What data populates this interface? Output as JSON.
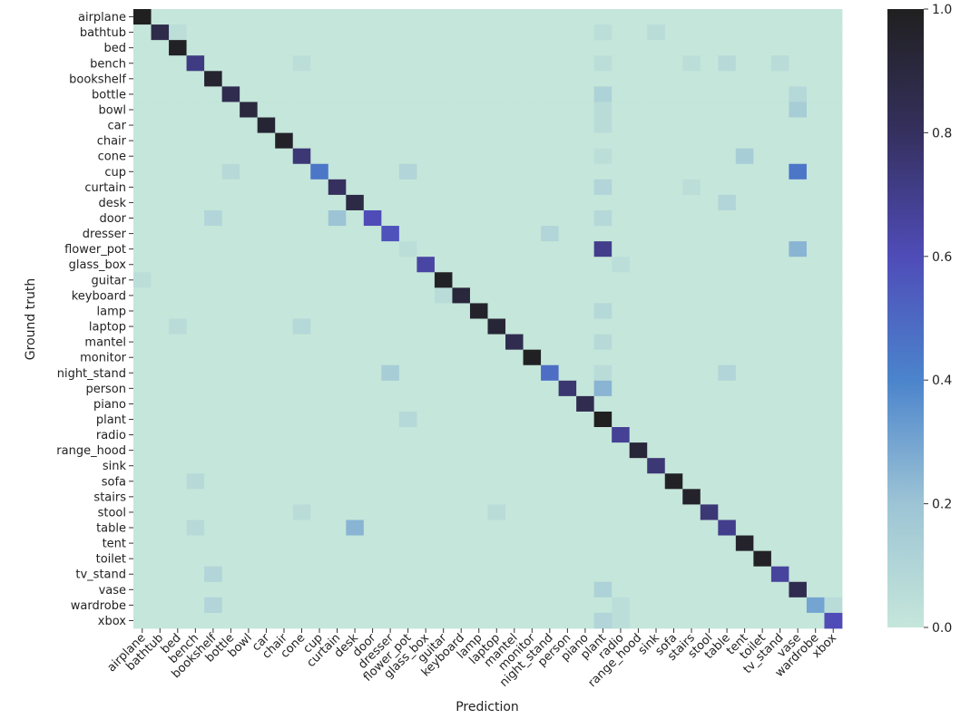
{
  "chart_data": {
    "type": "heatmap",
    "title": "",
    "xlabel": "Prediction",
    "ylabel": "Ground truth",
    "labels": [
      "airplane",
      "bathtub",
      "bed",
      "bench",
      "bookshelf",
      "bottle",
      "bowl",
      "car",
      "chair",
      "cone",
      "cup",
      "curtain",
      "desk",
      "door",
      "dresser",
      "flower_pot",
      "glass_box",
      "guitar",
      "keyboard",
      "lamp",
      "laptop",
      "mantel",
      "monitor",
      "night_stand",
      "person",
      "piano",
      "plant",
      "radio",
      "range_hood",
      "sink",
      "sofa",
      "stairs",
      "stool",
      "table",
      "tent",
      "toilet",
      "tv_stand",
      "vase",
      "wardrobe",
      "xbox"
    ],
    "diagonal": [
      1.0,
      0.86,
      0.98,
      0.72,
      0.95,
      0.85,
      0.9,
      0.94,
      0.97,
      0.75,
      0.45,
      0.8,
      0.88,
      0.6,
      0.58,
      0.05,
      0.65,
      0.98,
      0.91,
      0.96,
      0.93,
      0.85,
      0.99,
      0.48,
      0.76,
      0.85,
      1.0,
      0.68,
      0.92,
      0.75,
      0.98,
      0.96,
      0.75,
      0.7,
      0.96,
      0.98,
      0.66,
      0.85,
      0.3,
      0.6
    ],
    "off_diagonal": [
      {
        "row": "bathtub",
        "col": "plant",
        "value": 0.05
      },
      {
        "row": "bathtub",
        "col": "sink",
        "value": 0.06
      },
      {
        "row": "bathtub",
        "col": "bed",
        "value": 0.05
      },
      {
        "row": "bench",
        "col": "cone",
        "value": 0.05
      },
      {
        "row": "bench",
        "col": "plant",
        "value": 0.05
      },
      {
        "row": "bench",
        "col": "stairs",
        "value": 0.05
      },
      {
        "row": "bench",
        "col": "table",
        "value": 0.07
      },
      {
        "row": "bench",
        "col": "tv_stand",
        "value": 0.06
      },
      {
        "row": "bottle",
        "col": "plant",
        "value": 0.12
      },
      {
        "row": "bottle",
        "col": "vase",
        "value": 0.08
      },
      {
        "row": "bowl",
        "col": "vase",
        "value": 0.15
      },
      {
        "row": "bowl",
        "col": "plant",
        "value": 0.06
      },
      {
        "row": "car",
        "col": "plant",
        "value": 0.06
      },
      {
        "row": "cone",
        "col": "tent",
        "value": 0.15
      },
      {
        "row": "cone",
        "col": "plant",
        "value": 0.05
      },
      {
        "row": "cup",
        "col": "vase",
        "value": 0.45
      },
      {
        "row": "cup",
        "col": "flower_pot",
        "value": 0.1
      },
      {
        "row": "cup",
        "col": "bottle",
        "value": 0.07
      },
      {
        "row": "curtain",
        "col": "plant",
        "value": 0.1
      },
      {
        "row": "curtain",
        "col": "stairs",
        "value": 0.05
      },
      {
        "row": "desk",
        "col": "table",
        "value": 0.1
      },
      {
        "row": "door",
        "col": "curtain",
        "value": 0.2
      },
      {
        "row": "door",
        "col": "bookshelf",
        "value": 0.1
      },
      {
        "row": "door",
        "col": "plant",
        "value": 0.08
      },
      {
        "row": "dresser",
        "col": "night_stand",
        "value": 0.1
      },
      {
        "row": "flower_pot",
        "col": "plant",
        "value": 0.7
      },
      {
        "row": "flower_pot",
        "col": "vase",
        "value": 0.25
      },
      {
        "row": "flower_pot",
        "col": "flower_pot",
        "value": 0.05
      },
      {
        "row": "glass_box",
        "col": "radio",
        "value": 0.05
      },
      {
        "row": "lamp",
        "col": "plant",
        "value": 0.08
      },
      {
        "row": "laptop",
        "col": "cone",
        "value": 0.08
      },
      {
        "row": "laptop",
        "col": "bed",
        "value": 0.06
      },
      {
        "row": "mantel",
        "col": "plant",
        "value": 0.07
      },
      {
        "row": "night_stand",
        "col": "dresser",
        "value": 0.15
      },
      {
        "row": "night_stand",
        "col": "table",
        "value": 0.1
      },
      {
        "row": "night_stand",
        "col": "plant",
        "value": 0.06
      },
      {
        "row": "person",
        "col": "plant",
        "value": 0.25
      },
      {
        "row": "plant",
        "col": "flower_pot",
        "value": 0.08
      },
      {
        "row": "sofa",
        "col": "bench",
        "value": 0.07
      },
      {
        "row": "stool",
        "col": "cone",
        "value": 0.06
      },
      {
        "row": "stool",
        "col": "laptop",
        "value": 0.06
      },
      {
        "row": "table",
        "col": "desk",
        "value": 0.25
      },
      {
        "row": "table",
        "col": "bench",
        "value": 0.07
      },
      {
        "row": "tv_stand",
        "col": "bookshelf",
        "value": 0.1
      },
      {
        "row": "vase",
        "col": "plant",
        "value": 0.12
      },
      {
        "row": "wardrobe",
        "col": "bookshelf",
        "value": 0.1
      },
      {
        "row": "wardrobe",
        "col": "xbox",
        "value": 0.06
      },
      {
        "row": "wardrobe",
        "col": "radio",
        "value": 0.05
      },
      {
        "row": "xbox",
        "col": "plant",
        "value": 0.1
      },
      {
        "row": "xbox",
        "col": "radio",
        "value": 0.05
      },
      {
        "row": "keyboard",
        "col": "guitar",
        "value": 0.06
      },
      {
        "row": "guitar",
        "col": "airplane",
        "value": 0.05
      }
    ],
    "colorbar": {
      "range": [
        0.0,
        1.0
      ],
      "ticks": [
        "0.0",
        "0.2",
        "0.4",
        "0.6",
        "0.8",
        "1.0"
      ],
      "colors": [
        "#c5e6da",
        "#9dc4d5",
        "#4b84cc",
        "#4f4cb8",
        "#35305e",
        "#202020"
      ]
    },
    "grid": false,
    "legend": "colorbar-right"
  }
}
